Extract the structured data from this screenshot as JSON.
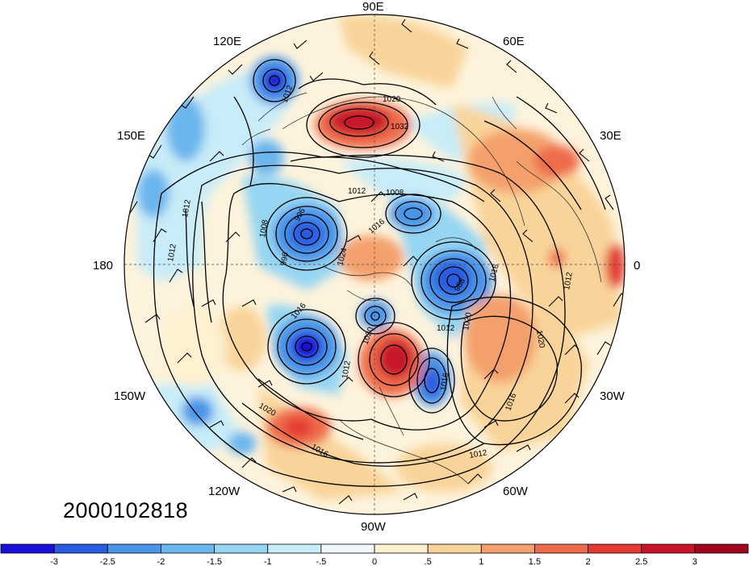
{
  "date_stamp": "2000102818",
  "lon_labels": {
    "n90e": "90E",
    "n120e": "120E",
    "n60e": "60E",
    "n150e": "150E",
    "n30e": "30E",
    "n180": "180",
    "n0": "0",
    "n150w": "150W",
    "n30w": "30W",
    "n120w": "120W",
    "n60w": "60W",
    "n90w": "90W"
  },
  "contour_labels": [
    "1012",
    "1020",
    "1032",
    "1012",
    "1008",
    "996",
    "1008",
    "1016",
    "996",
    "1024",
    "988",
    "1012",
    "1016",
    "1016",
    "1020",
    "1012",
    "1020",
    "1020",
    "1016",
    "1012",
    "1016",
    "1012",
    "1020",
    "1016",
    "1012",
    "1012"
  ],
  "colorbar": {
    "colors": [
      "#1a10d8",
      "#2a5be0",
      "#4a95e8",
      "#6ab6ee",
      "#96d6f2",
      "#c8ecf8",
      "#f0f8fc",
      "#fdf1d0",
      "#f9d49a",
      "#f4a06c",
      "#ee6c4c",
      "#e23a32",
      "#c8142a",
      "#a0061e"
    ],
    "labels": [
      "-3",
      "-2.5",
      "-2",
      "-1.5",
      "-1",
      "-.5",
      "0",
      ".5",
      "1",
      "1.5",
      "2",
      "2.5",
      "3"
    ]
  }
}
